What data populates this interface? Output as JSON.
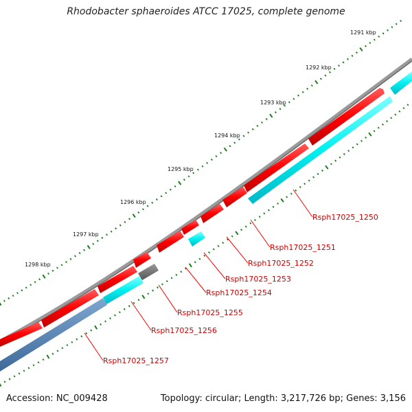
{
  "title": "Rhodobacter sphaeroides ATCC 17025, complete genome",
  "footer": {
    "accession": "Accession: NC_009428",
    "summary": "Topology: circular; Length: 3,217,726 bp; Genes: 3,156"
  },
  "colors": {
    "backbone": "#7f7f7f",
    "forward_gene": "#ff0000",
    "reverse_gene": "#00ffff",
    "misc_gene": "#606060",
    "highlight_gene": "#4f7fb0",
    "label": "#cc0000",
    "ticks": "#1a7a1a"
  },
  "ticks": [
    "1291 kbp",
    "1292 kbp",
    "1293 kbp",
    "1294 kbp",
    "1295 kbp",
    "1296 kbp",
    "1297 kbp",
    "1298 kbp"
  ],
  "gene_labels": [
    "Rsph17025_1250",
    "Rsph17025_1251",
    "Rsph17025_1252",
    "Rsph17025_1253",
    "Rsph17025_1254",
    "Rsph17025_1255",
    "Rsph17025_1256",
    "Rsph17025_1257"
  ]
}
